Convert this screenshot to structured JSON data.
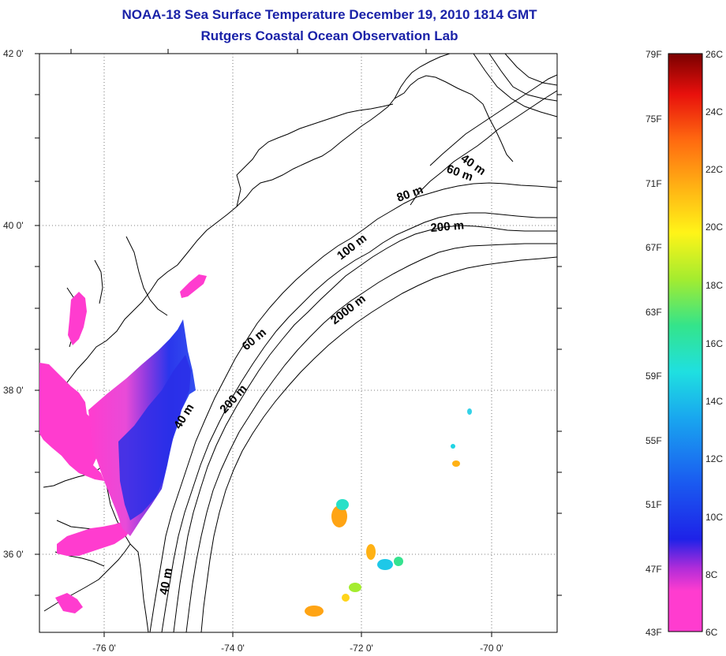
{
  "title": {
    "line1": "NOAA-18 Sea Surface Temperature December 19, 2010 1814 GMT",
    "line2": "Rutgers Coastal Ocean Observation Lab"
  },
  "map": {
    "lat_ticks": [
      "42 0'",
      "40 0'",
      "38 0'",
      "36 0'"
    ],
    "lon_ticks": [
      "-76 0'",
      "-74 0'",
      "-72 0'",
      "-70 0'"
    ],
    "grid": "dotted",
    "contour_labels": [
      "40 m",
      "60 m",
      "80 m",
      "200 m",
      "100 m",
      "2000 m",
      "60 m",
      "40 m",
      "200 m",
      "40 m"
    ]
  },
  "colorbar": {
    "fahrenheit": [
      "79F",
      "75F",
      "71F",
      "67F",
      "63F",
      "59F",
      "55F",
      "51F",
      "47F",
      "43F"
    ],
    "celsius": [
      "26C",
      "24C",
      "22C",
      "20C",
      "18C",
      "16C",
      "14C",
      "12C",
      "10C",
      "8C",
      "6C"
    ],
    "colors": [
      "#ff3ccf",
      "#b02cd9",
      "#1e22e8",
      "#1a5cf0",
      "#19a7ef",
      "#1fe0e0",
      "#34e48a",
      "#a4ec2f",
      "#fff418",
      "#ffb114",
      "#ff6a10",
      "#e8100c",
      "#7a0000"
    ]
  }
}
